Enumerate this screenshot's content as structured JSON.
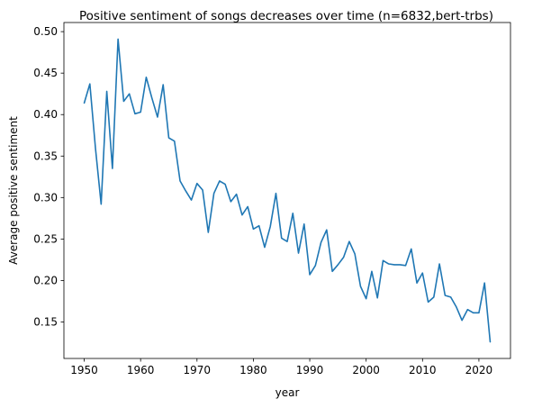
{
  "chart_data": {
    "type": "line",
    "title": "Positive sentiment of songs decreases over time (n=6832,bert-trbs)",
    "xlabel": "year",
    "ylabel": "Average positive sentiment",
    "xlim": [
      1946.4,
      2025.6
    ],
    "ylim": [
      0.106,
      0.511
    ],
    "xticks": [
      1950,
      1960,
      1970,
      1980,
      1990,
      2000,
      2010,
      2020
    ],
    "yticks": [
      0.15,
      0.2,
      0.25,
      0.3,
      0.35,
      0.4,
      0.45,
      0.5
    ],
    "ytick_labels": [
      "0.15",
      "0.20",
      "0.25",
      "0.30",
      "0.35",
      "0.40",
      "0.45",
      "0.50"
    ],
    "grid": false,
    "legend": "none",
    "color": "#1f77b4",
    "x": [
      1950,
      1951,
      1952,
      1953,
      1954,
      1955,
      1956,
      1957,
      1958,
      1959,
      1960,
      1961,
      1962,
      1963,
      1964,
      1965,
      1966,
      1967,
      1968,
      1969,
      1970,
      1971,
      1972,
      1973,
      1974,
      1975,
      1976,
      1977,
      1978,
      1979,
      1980,
      1981,
      1982,
      1983,
      1984,
      1985,
      1986,
      1987,
      1988,
      1989,
      1990,
      1991,
      1992,
      1993,
      1994,
      1995,
      1996,
      1997,
      1998,
      1999,
      2000,
      2001,
      2002,
      2003,
      2004,
      2005,
      2006,
      2007,
      2008,
      2009,
      2010,
      2011,
      2012,
      2013,
      2014,
      2015,
      2016,
      2017,
      2018,
      2019,
      2020,
      2021,
      2022
    ],
    "y": [
      0.414,
      0.437,
      0.359,
      0.292,
      0.428,
      0.335,
      0.491,
      0.416,
      0.425,
      0.401,
      0.403,
      0.445,
      0.42,
      0.397,
      0.436,
      0.372,
      0.368,
      0.32,
      0.308,
      0.297,
      0.317,
      0.309,
      0.258,
      0.305,
      0.32,
      0.316,
      0.295,
      0.304,
      0.279,
      0.289,
      0.262,
      0.266,
      0.24,
      0.265,
      0.305,
      0.251,
      0.247,
      0.281,
      0.233,
      0.268,
      0.207,
      0.218,
      0.246,
      0.261,
      0.211,
      0.219,
      0.228,
      0.247,
      0.232,
      0.193,
      0.178,
      0.211,
      0.179,
      0.224,
      0.22,
      0.219,
      0.219,
      0.218,
      0.238,
      0.197,
      0.209,
      0.174,
      0.18,
      0.22,
      0.182,
      0.18,
      0.168,
      0.152,
      0.165,
      0.161,
      0.161,
      0.197,
      0.126
    ]
  }
}
